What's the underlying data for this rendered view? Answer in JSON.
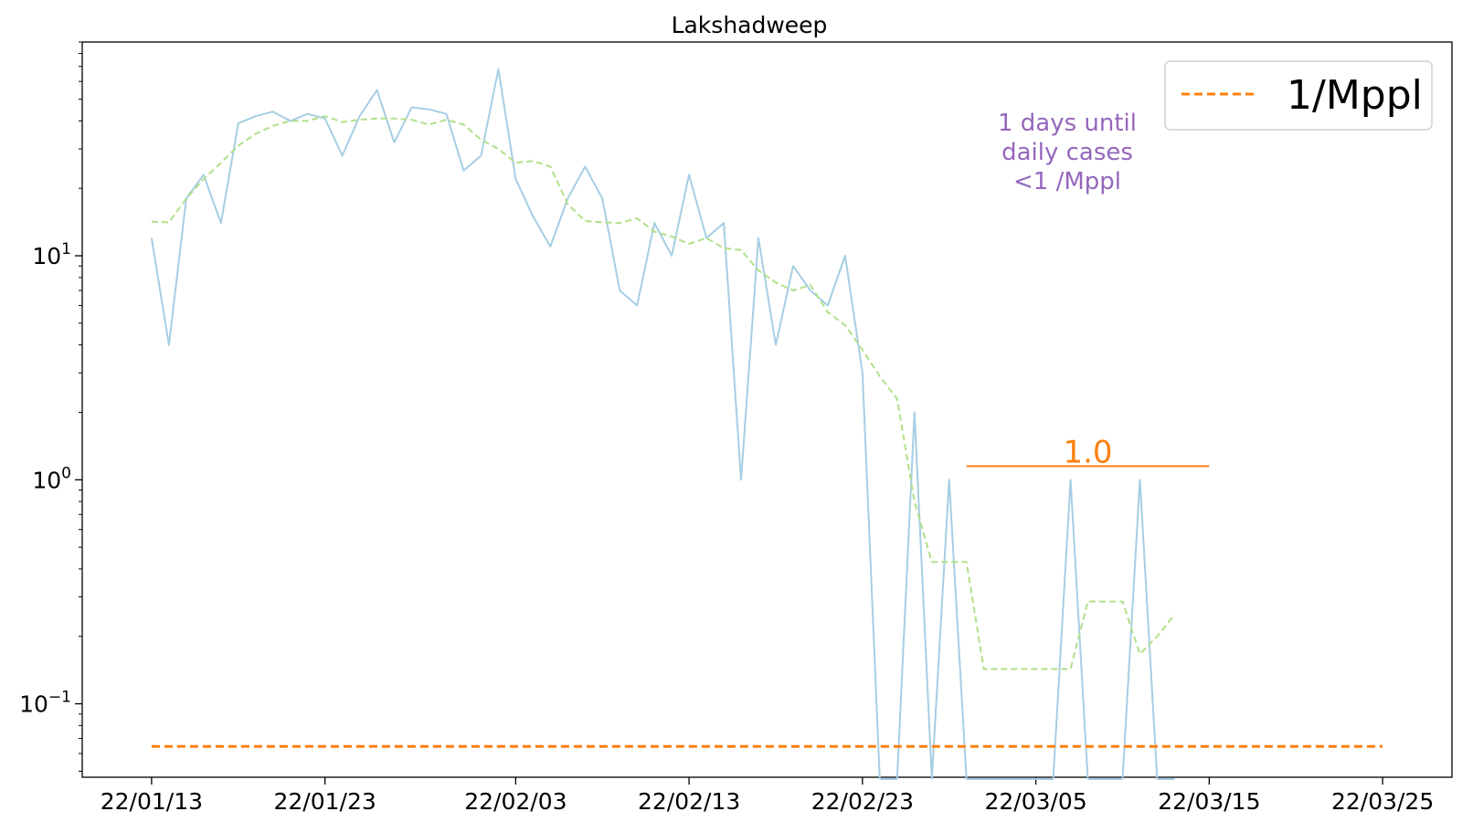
{
  "chart_data": {
    "type": "line",
    "title": "Lakshadweep",
    "xlabel": "",
    "ylabel": "",
    "yscale": "log",
    "ylim": [
      0.047,
      90
    ],
    "xlim": [
      "2022-01-09",
      "2022-03-29"
    ],
    "x_ticks": [
      "22/01/13",
      "22/01/23",
      "22/02/03",
      "22/02/13",
      "22/02/23",
      "22/03/05",
      "22/03/15",
      "22/03/25"
    ],
    "y_ticks": [
      {
        "value": 10,
        "base": "10",
        "exp": "1"
      },
      {
        "value": 1,
        "base": "10",
        "exp": "0"
      },
      {
        "value": 0.1,
        "base": "10",
        "exp": "−1"
      }
    ],
    "grid": false,
    "legend_position": "upper right",
    "x_start": "2022-01-13",
    "series": [
      {
        "name": "",
        "style": "solid",
        "color": "#a6cee3",
        "values": [
          12,
          4,
          18,
          23,
          14,
          39,
          42,
          44,
          40,
          43,
          41,
          28,
          42,
          55,
          32,
          46,
          45,
          43,
          24,
          28,
          68,
          22,
          15,
          11,
          18,
          25,
          18,
          7,
          6,
          14,
          10,
          23,
          12,
          14,
          1,
          12,
          4,
          9,
          7,
          6,
          10,
          3,
          0,
          0,
          2,
          0,
          1,
          0,
          0,
          0,
          0,
          0,
          0,
          1,
          0,
          0,
          0,
          1,
          0,
          0
        ]
      },
      {
        "name": "",
        "style": "dashed",
        "color": "#b2df8a",
        "values": [
          14.2,
          14.1,
          18,
          22,
          26,
          31,
          35,
          38,
          40,
          40,
          42,
          39.5,
          40.5,
          41,
          41,
          40.5,
          38.5,
          40.5,
          38.5,
          33,
          30,
          26,
          26.5,
          25,
          17,
          14.3,
          14.1,
          14,
          14.7,
          12.8,
          12.2,
          11.3,
          12,
          10.8,
          10.6,
          8.6,
          7.6,
          7,
          7.4,
          5.6,
          4.9,
          3.8,
          2.9,
          2.3,
          0.8,
          0.43,
          0.43,
          0.43,
          0.143,
          0.143,
          0.143,
          0.143,
          0.143,
          0.143,
          0.286,
          0.286,
          0.286,
          0.167,
          0.2,
          0.25
        ]
      }
    ],
    "reference_line": {
      "name": "1/Mppl",
      "value": 0.0645,
      "style": "dashed",
      "color": "#ff7f0e",
      "x_from": "2022-01-13",
      "x_to": "2022-03-25"
    },
    "threshold_segment": {
      "label": "1.0",
      "value": 1.15,
      "x_from": "2022-03-01",
      "x_to": "2022-03-15",
      "color": "#ff7f0e"
    },
    "annotation": [
      "1 days until",
      "daily cases",
      "<1 /Mppl"
    ],
    "annotation_color": "#9467bd"
  }
}
